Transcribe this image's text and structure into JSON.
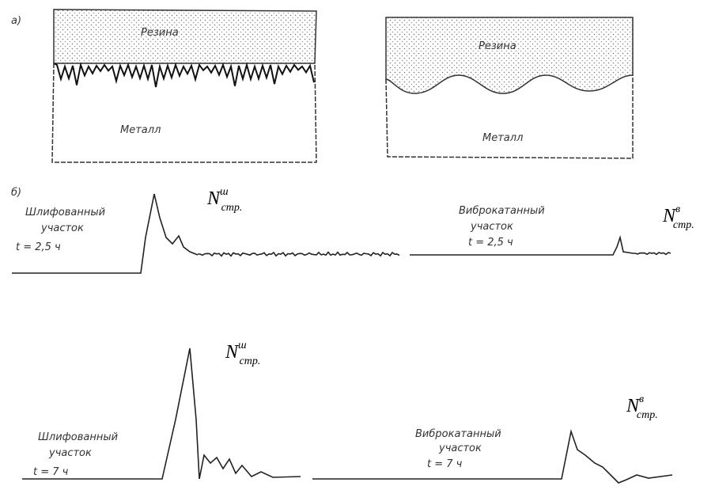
{
  "panel_a": {
    "label": "а)",
    "left": {
      "top": "Резина",
      "bottom": "Металл"
    },
    "right": {
      "top": "Резина",
      "bottom": "Металл"
    }
  },
  "panel_b": {
    "label": "б)",
    "traces": [
      {
        "caption": [
          "Шлифованный",
          "участок",
          "t = 2,5 ч"
        ],
        "force": {
          "symbol": "N",
          "sup": "ш",
          "sub": "стр."
        }
      },
      {
        "caption": [
          "Виброкатанный",
          "участок",
          "t = 2,5 ч"
        ],
        "force": {
          "symbol": "N",
          "sup": "в",
          "sub": "стр."
        }
      },
      {
        "caption": [
          "Шлифованный",
          "участок",
          "t = 7 ч"
        ],
        "force": {
          "symbol": "N",
          "sup": "ш",
          "sub": "стр."
        }
      },
      {
        "caption": [
          "Виброкатанный",
          "участок",
          "t = 7 ч"
        ],
        "force": {
          "symbol": "N",
          "sup": "в",
          "sub": "стр."
        }
      }
    ]
  }
}
